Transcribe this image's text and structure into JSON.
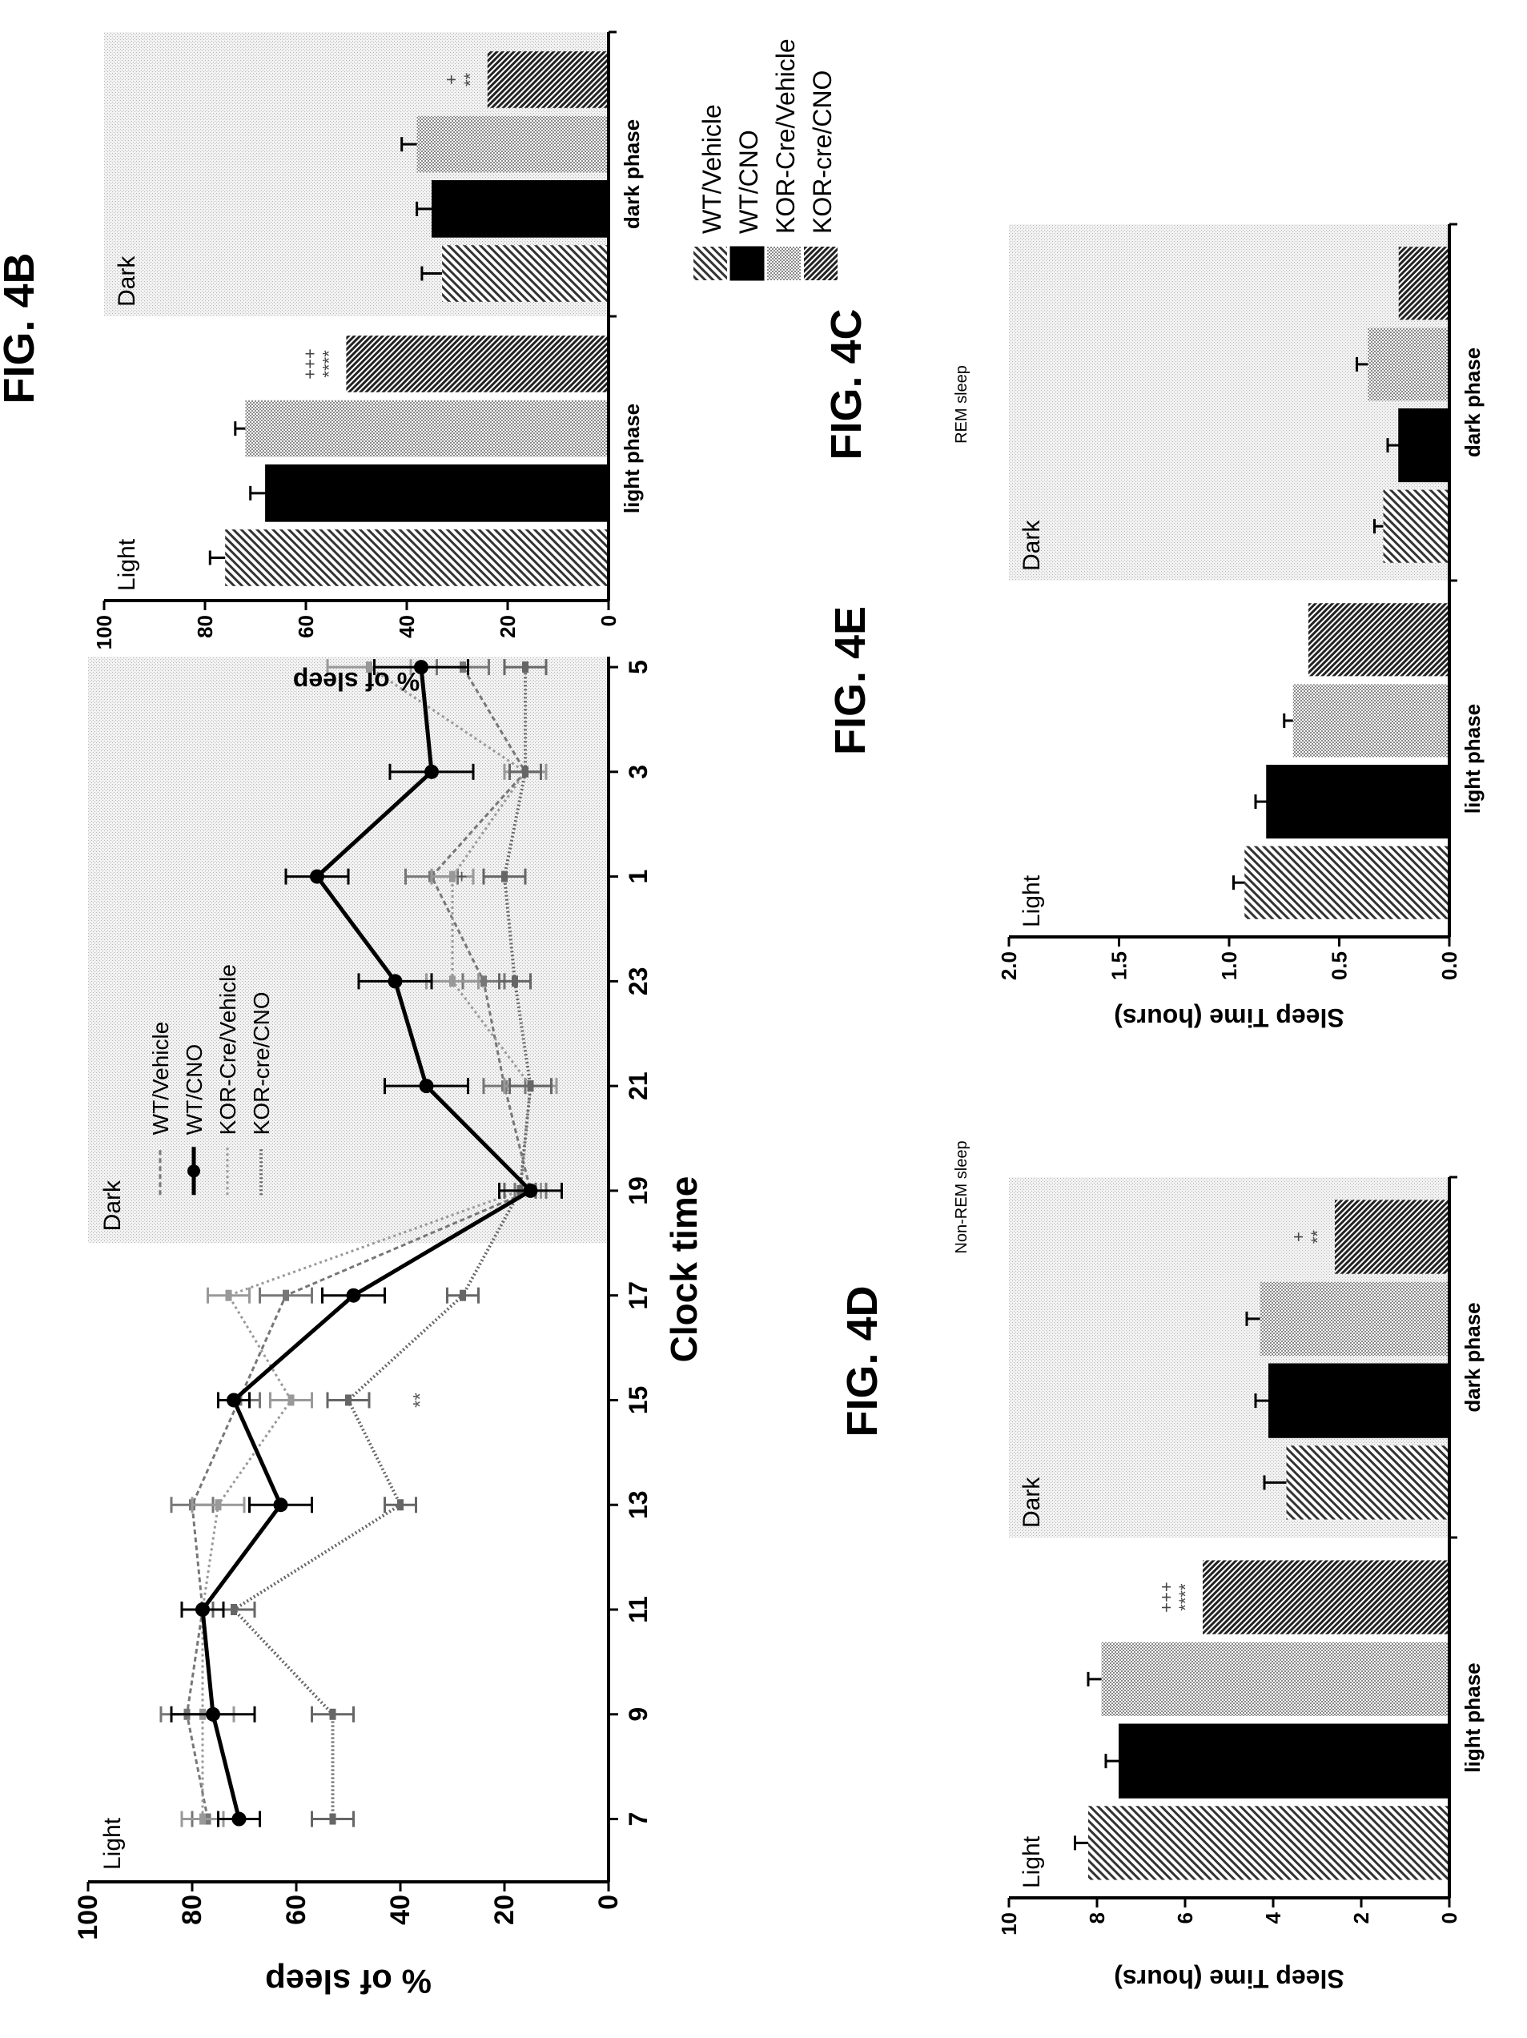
{
  "patterns": {
    "light_fill": "#dcdcdc",
    "dark_fill": "#e2e2e2",
    "solid": "#000000"
  },
  "chart_data": [
    {
      "id": "fig4b",
      "figure_label": "FIG. 4B",
      "type": "line",
      "xlabel": "Clock time",
      "ylabel": "% of sleep",
      "ylim": [
        0,
        100
      ],
      "yticks": [
        "0",
        "20",
        "40",
        "60",
        "80",
        "100"
      ],
      "categories": [
        "7",
        "9",
        "11",
        "13",
        "15",
        "17",
        "19",
        "21",
        "23",
        "1",
        "3",
        "5"
      ],
      "light_label": "Light",
      "dark_label": "Dark",
      "dark_shade_start_category": "17",
      "series": [
        {
          "name": "WT/Vehicle",
          "style": "hatched",
          "values": [
            77,
            81,
            78,
            80,
            71,
            62,
            15,
            20,
            24,
            34,
            16,
            28
          ],
          "errors": [
            3,
            5,
            4,
            4,
            4,
            5,
            3,
            4,
            4,
            5,
            3,
            5
          ]
        },
        {
          "name": "WT/CNO",
          "style": "solid",
          "values": [
            71,
            76,
            78,
            63,
            72,
            49,
            15,
            35,
            41,
            56,
            34,
            36
          ],
          "errors": [
            4,
            8,
            4,
            6,
            3,
            6,
            6,
            8,
            7,
            6,
            8,
            9
          ]
        },
        {
          "name": "KOR-Cre/Vehicle",
          "style": "dotted",
          "values": [
            78,
            78,
            78,
            75,
            61,
            73,
            17,
            15,
            30,
            30,
            16,
            46
          ],
          "errors": [
            4,
            6,
            4,
            5,
            4,
            4,
            4,
            5,
            5,
            4,
            4,
            8
          ]
        },
        {
          "name": "KOR-cre/CNO",
          "style": "dense",
          "values": [
            53,
            53,
            72,
            40,
            50,
            28,
            17,
            15,
            18,
            20,
            16,
            16
          ],
          "errors": [
            4,
            4,
            4,
            3,
            4,
            3,
            3,
            4,
            3,
            4,
            3,
            4
          ]
        }
      ],
      "annotations": [
        {
          "text": "**",
          "category": "15",
          "y": 35
        },
        {
          "text": "+",
          "category": "1",
          "y": 27
        }
      ]
    },
    {
      "id": "fig4c",
      "figure_label": "FIG. 4C",
      "type": "bar",
      "ylabel": "% of sleep",
      "ylim": [
        0,
        100
      ],
      "yticks": [
        "0",
        "20",
        "40",
        "60",
        "80",
        "100"
      ],
      "categories": [
        "light phase",
        "dark phase"
      ],
      "light_label": "Light",
      "dark_label": "Dark",
      "series": [
        {
          "name": "WT/Vehicle",
          "values": [
            76,
            33
          ],
          "errors": [
            3,
            4
          ]
        },
        {
          "name": "WT/CNO",
          "values": [
            68,
            35
          ],
          "errors": [
            3,
            3
          ]
        },
        {
          "name": "KOR-Cre/Vehicle",
          "values": [
            72,
            38
          ],
          "errors": [
            2,
            3
          ]
        },
        {
          "name": "KOR-cre/CNO",
          "values": [
            52,
            24
          ],
          "errors": [
            0,
            0
          ]
        }
      ],
      "annotations": [
        {
          "category": "light phase",
          "series": "KOR-cre/CNO",
          "lines": [
            "+++",
            "****"
          ]
        },
        {
          "category": "dark phase",
          "series": "KOR-cre/CNO",
          "lines": [
            "+",
            "**"
          ]
        }
      ]
    },
    {
      "id": "fig4d",
      "figure_label": "FIG. 4D",
      "subtitle": "Non-REM sleep",
      "type": "bar",
      "ylabel": "Sleep Time (hours)",
      "ylim": [
        0,
        10
      ],
      "yticks": [
        "0",
        "2",
        "4",
        "6",
        "8",
        "10"
      ],
      "categories": [
        "light phase",
        "dark phase"
      ],
      "light_label": "Light",
      "dark_label": "Dark",
      "series": [
        {
          "name": "WT/Vehicle",
          "values": [
            8.2,
            3.7
          ],
          "errors": [
            0.3,
            0.5
          ]
        },
        {
          "name": "WT/CNO",
          "values": [
            7.5,
            4.1
          ],
          "errors": [
            0.3,
            0.3
          ]
        },
        {
          "name": "KOR-Cre/Vehicle",
          "values": [
            7.9,
            4.3
          ],
          "errors": [
            0.3,
            0.3
          ]
        },
        {
          "name": "KOR-cre/CNO",
          "values": [
            5.6,
            2.6
          ],
          "errors": [
            0,
            0
          ]
        }
      ],
      "annotations": [
        {
          "category": "light phase",
          "series": "KOR-cre/CNO",
          "lines": [
            "+++",
            "****"
          ]
        },
        {
          "category": "dark phase",
          "series": "KOR-cre/CNO",
          "lines": [
            "+",
            "**"
          ]
        }
      ]
    },
    {
      "id": "fig4e",
      "figure_label": "FIG. 4E",
      "subtitle": "REM sleep",
      "type": "bar",
      "ylabel": "Sleep Time (hours)",
      "ylim": [
        0,
        2.0
      ],
      "yticks": [
        "0.0",
        "0.5",
        "1.0",
        "1.5",
        "2.0"
      ],
      "categories": [
        "light phase",
        "dark phase"
      ],
      "light_label": "Light",
      "dark_label": "Dark",
      "series": [
        {
          "name": "WT/Vehicle",
          "values": [
            0.93,
            0.3
          ],
          "errors": [
            0.05,
            0.04
          ]
        },
        {
          "name": "WT/CNO",
          "values": [
            0.83,
            0.23
          ],
          "errors": [
            0.05,
            0.05
          ]
        },
        {
          "name": "KOR-Cre/Vehicle",
          "values": [
            0.71,
            0.37
          ],
          "errors": [
            0.04,
            0.05
          ]
        },
        {
          "name": "KOR-cre/CNO",
          "values": [
            0.64,
            0.23
          ],
          "errors": [
            0,
            0
          ]
        }
      ],
      "annotations": []
    }
  ],
  "legend": [
    "WT/Vehicle",
    "WT/CNO",
    "KOR-Cre/Vehicle",
    "KOR-cre/CNO"
  ]
}
